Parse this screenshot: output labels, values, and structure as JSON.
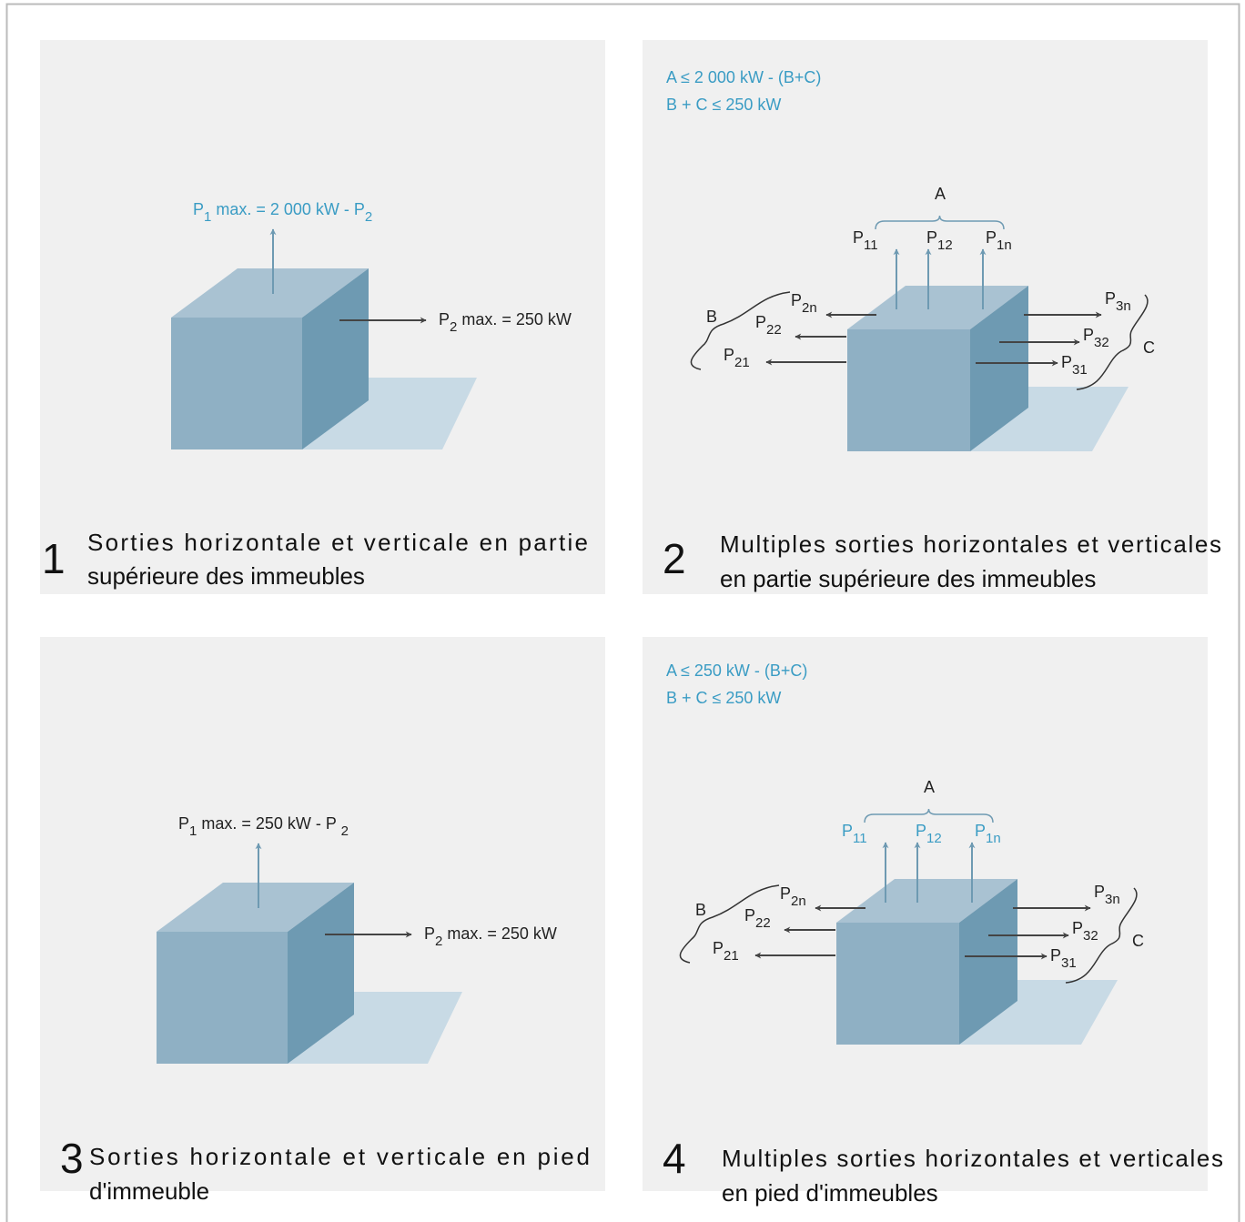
{
  "panels": [
    {
      "number": "1",
      "caption": [
        "Sorties horizontale et verticale en partie",
        "supérieure des immeubles"
      ],
      "vertical_label": [
        "P",
        "1",
        " max. = 2 000 kW - P",
        "2"
      ],
      "horizontal_label": [
        "P",
        "2",
        " max. = 250 kW"
      ]
    },
    {
      "number": "2",
      "caption": [
        "Multiples sorties horizontales et verticales",
        "en partie supérieure des immeubles"
      ],
      "conditions": [
        "A ≤ 2 000 kW - (B+C)",
        "B + C ≤ 250 kW"
      ],
      "group_a": "A",
      "group_b": "B",
      "group_c": "C",
      "vertical_labels": [
        [
          "P",
          "11"
        ],
        [
          "P",
          "12"
        ],
        [
          "P",
          "1n"
        ]
      ],
      "left_labels": [
        [
          "P",
          "2n"
        ],
        [
          "P",
          "22"
        ],
        [
          "P",
          "21"
        ]
      ],
      "right_labels": [
        [
          "P",
          "3n"
        ],
        [
          "P",
          "32"
        ],
        [
          "P",
          "31"
        ]
      ]
    },
    {
      "number": "3",
      "caption": [
        "Sorties horizontale et verticale en pied",
        "d'immeuble"
      ],
      "vertical_label": [
        "P",
        "1",
        " max. = 250 kW - P ",
        "2"
      ],
      "horizontal_label": [
        "P",
        "2",
        " max. = 250 kW"
      ]
    },
    {
      "number": "4",
      "caption": [
        "Multiples sorties horizontales et verticales",
        "en pied d'immeubles"
      ],
      "conditions": [
        "A ≤ 250 kW - (B+C)",
        "B + C ≤ 250 kW"
      ],
      "group_a": "A",
      "group_b": "B",
      "group_c": "C",
      "vertical_labels": [
        [
          "P",
          "11"
        ],
        [
          "P",
          "12"
        ],
        [
          "P",
          "1n"
        ]
      ],
      "left_labels": [
        [
          "P",
          "2n"
        ],
        [
          "P",
          "22"
        ],
        [
          "P",
          "21"
        ]
      ],
      "right_labels": [
        [
          "P",
          "3n"
        ],
        [
          "P",
          "32"
        ],
        [
          "P",
          "31"
        ]
      ]
    }
  ]
}
